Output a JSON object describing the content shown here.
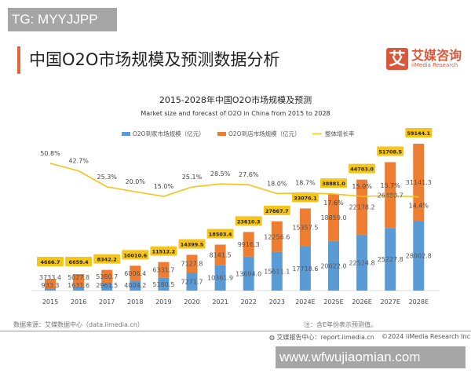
{
  "watermark_top": "TG: MYYJJPP",
  "watermark_bottom": "www.wfwujiaomian.com",
  "header": {
    "title": "中国O2O市场规模及预测数据分析",
    "logo_mark": "艾",
    "logo_cn": "艾媒咨询",
    "logo_en": "iiMedia Research"
  },
  "footer": {
    "source": "数据来源：艾媒数据中心（data.iimedia.cn）",
    "note": "注：含E年份表示预测值。",
    "report": "艾媒报告中心：report.iimedia.cn",
    "copyright": "©2024  iiMedia Research  Inc"
  },
  "colors": {
    "home": "#5b9bd5",
    "store": "#ed7d31",
    "growth": "#f2c31a",
    "accent": "#e4643b"
  },
  "chart_data": {
    "type": "bar",
    "stacked": true,
    "title": "2015-2028年中国O2O市场规模及预测",
    "subtitle": "Market size and forecast of O2O in China from 2015 to 2028",
    "legend_position": "top",
    "grid": false,
    "categories": [
      "2015",
      "2016",
      "2017",
      "2018",
      "2019",
      "2020",
      "2021",
      "2022",
      "2023",
      "2024E",
      "2025E",
      "2026E",
      "2027E",
      "2028E"
    ],
    "series": [
      {
        "name": "O2O到家市场规模（亿元）",
        "type": "bar",
        "values": [
          933.3,
          1631.6,
          2961.5,
          4004.2,
          5180.5,
          7271.7,
          10361.9,
          13694.0,
          15611.1,
          17718.6,
          20022.0,
          22524.8,
          25227.8,
          28002.8
        ]
      },
      {
        "name": "O2O到店市场规模（亿元）",
        "type": "bar",
        "values": [
          3733.4,
          5027.8,
          5380.7,
          6006.4,
          6331.7,
          7127.8,
          8141.5,
          9916.3,
          12256.6,
          15357.5,
          18859.0,
          22178.2,
          26480.7,
          31141.3
        ]
      },
      {
        "name": "整体增长率",
        "type": "line",
        "unit": "%",
        "values": [
          50.8,
          42.7,
          25.3,
          20.0,
          15.0,
          25.1,
          28.5,
          27.6,
          18.0,
          18.7,
          17.6,
          15.0,
          15.7,
          14.4
        ]
      }
    ],
    "totals": [
      4666.7,
      6659.4,
      8342.2,
      10010.6,
      11512.2,
      14399.5,
      18503.4,
      23610.3,
      27867.7,
      33076.1,
      38881.0,
      44703.0,
      51708.5,
      59144.1
    ]
  }
}
